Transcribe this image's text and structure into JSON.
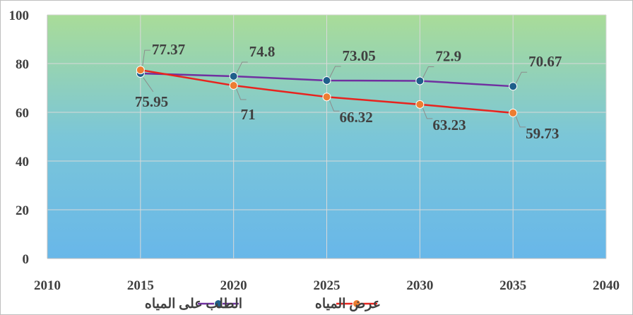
{
  "chart_data": {
    "type": "line",
    "title": "",
    "xlabel": "",
    "ylabel": "",
    "x": [
      2015,
      2020,
      2025,
      2030,
      2035
    ],
    "xlim": [
      2010,
      2040
    ],
    "xticks": [
      2010,
      2015,
      2020,
      2025,
      2030,
      2035,
      2040
    ],
    "ylim": [
      0,
      100
    ],
    "yticks": [
      0,
      20,
      40,
      60,
      80,
      100
    ],
    "grid": "horizontal and vertical",
    "legend": "bottom",
    "series": [
      {
        "name": "الطلب على المياه",
        "values": [
          75.95,
          74.8,
          73.05,
          72.9,
          70.67
        ],
        "labels": [
          "75.95",
          "74.8",
          "73.05",
          "72.9",
          "70.67"
        ],
        "line_color": "#7030a0",
        "marker_color": "#1f5f8b"
      },
      {
        "name": "عرض المياه",
        "values": [
          77.37,
          71,
          66.32,
          63.23,
          59.73
        ],
        "labels": [
          "77.37",
          "71",
          "66.32",
          "63.23",
          "59.73"
        ],
        "line_color": "#e8231e",
        "marker_color": "#ed7d31"
      }
    ]
  }
}
